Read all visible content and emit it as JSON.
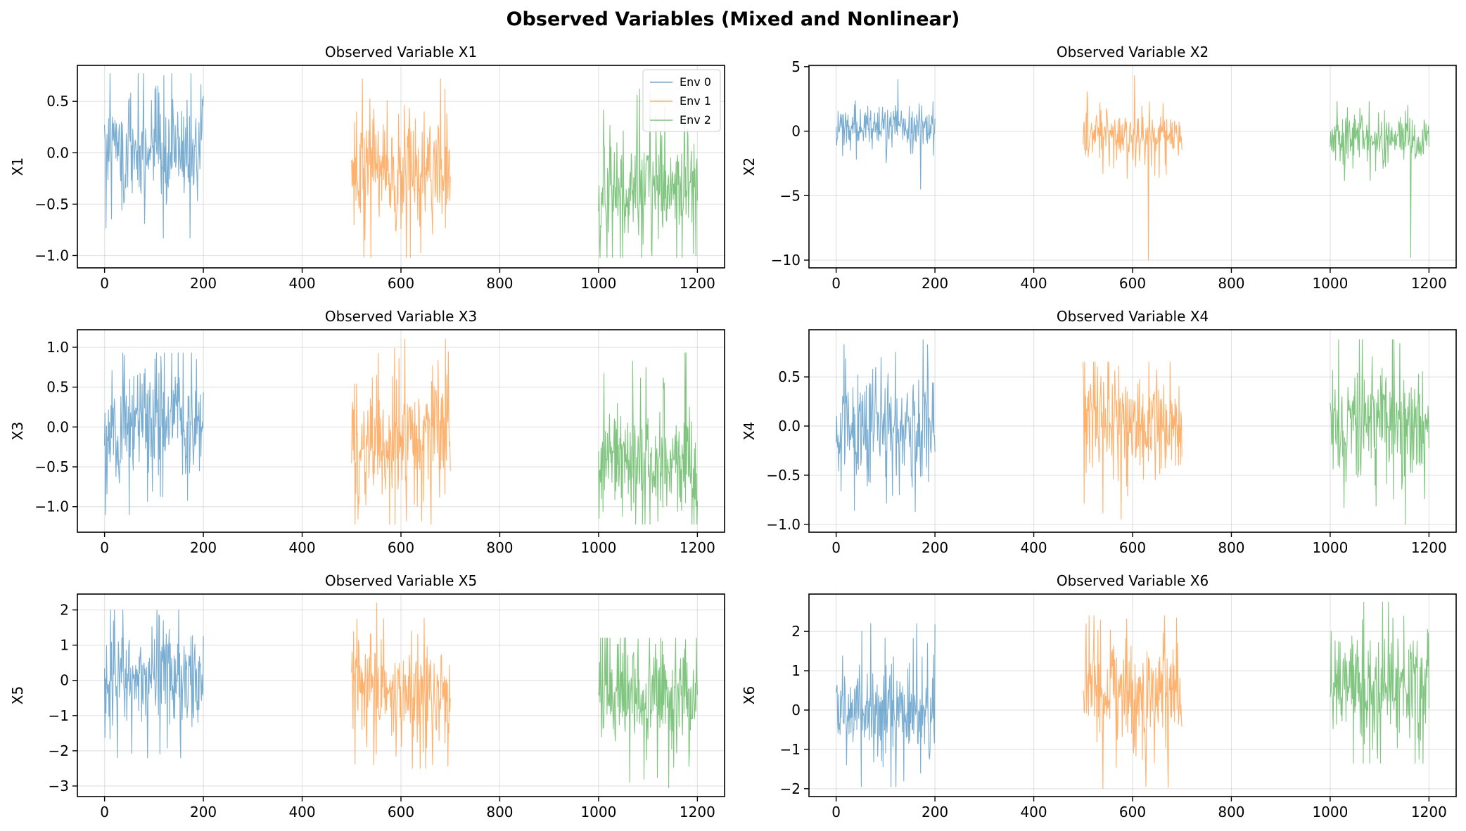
{
  "suptitle": "Observed Variables (Mixed and Nonlinear)",
  "colors": {
    "env0": "#1f77b4",
    "env1": "#ff7f0e",
    "env2": "#2ca02c"
  },
  "chart_data": [
    {
      "type": "line",
      "title": "Observed Variable X1",
      "ylabel": "X1",
      "xlim": [
        -55,
        1255
      ],
      "ylim": [
        -1.12,
        0.85
      ],
      "xticks": [
        0,
        200,
        400,
        600,
        800,
        1000,
        1200
      ],
      "yticks": [
        -1.0,
        -0.5,
        0.0,
        0.5
      ],
      "ytick_labels": [
        "−1.0",
        "−0.5",
        "0.0",
        "0.5"
      ],
      "grid": true,
      "legend": {
        "position": "top-right",
        "entries": [
          "Env 0",
          "Env 1",
          "Env 2"
        ]
      },
      "series": [
        {
          "name": "Env 0",
          "x_range": [
            0,
            200
          ],
          "mean": 0.0,
          "spread": 0.28,
          "min": -0.83,
          "max": 0.77
        },
        {
          "name": "Env 1",
          "x_range": [
            500,
            700
          ],
          "mean": -0.15,
          "spread": 0.3,
          "min": -1.02,
          "max": 0.72
        },
        {
          "name": "Env 2",
          "x_range": [
            1000,
            1200
          ],
          "mean": -0.35,
          "spread": 0.3,
          "min": -1.02,
          "max": 0.62
        }
      ]
    },
    {
      "type": "line",
      "title": "Observed Variable X2",
      "ylabel": "X2",
      "xlim": [
        -55,
        1255
      ],
      "ylim": [
        -10.6,
        5.1
      ],
      "xticks": [
        0,
        200,
        400,
        600,
        800,
        1000,
        1200
      ],
      "yticks": [
        -10,
        -5,
        0,
        5
      ],
      "ytick_labels": [
        "−10",
        "−5",
        "0",
        "5"
      ],
      "grid": true,
      "legend": null,
      "series": [
        {
          "name": "Env 0",
          "x_range": [
            0,
            200
          ],
          "mean": 0.2,
          "spread": 0.8,
          "min": -4.5,
          "max": 4.0
        },
        {
          "name": "Env 1",
          "x_range": [
            500,
            700
          ],
          "mean": -0.3,
          "spread": 1.0,
          "min": -10.0,
          "max": 4.3
        },
        {
          "name": "Env 2",
          "x_range": [
            1000,
            1200
          ],
          "mean": -0.5,
          "spread": 1.0,
          "min": -9.8,
          "max": 2.3
        }
      ]
    },
    {
      "type": "line",
      "title": "Observed Variable X3",
      "ylabel": "X3",
      "xlim": [
        -55,
        1255
      ],
      "ylim": [
        -1.32,
        1.22
      ],
      "xticks": [
        0,
        200,
        400,
        600,
        800,
        1000,
        1200
      ],
      "yticks": [
        -1.0,
        -0.5,
        0.0,
        0.5,
        1.0
      ],
      "ytick_labels": [
        "−1.0",
        "−0.5",
        "0.0",
        "0.5",
        "1.0"
      ],
      "grid": true,
      "legend": null,
      "series": [
        {
          "name": "Env 0",
          "x_range": [
            0,
            200
          ],
          "mean": 0.05,
          "spread": 0.38,
          "min": -1.1,
          "max": 0.93
        },
        {
          "name": "Env 1",
          "x_range": [
            500,
            700
          ],
          "mean": -0.2,
          "spread": 0.4,
          "min": -1.22,
          "max": 1.1
        },
        {
          "name": "Env 2",
          "x_range": [
            1000,
            1200
          ],
          "mean": -0.4,
          "spread": 0.4,
          "min": -1.22,
          "max": 0.93
        }
      ]
    },
    {
      "type": "line",
      "title": "Observed Variable X4",
      "ylabel": "X4",
      "xlim": [
        -55,
        1255
      ],
      "ylim": [
        -1.08,
        0.98
      ],
      "xticks": [
        0,
        200,
        400,
        600,
        800,
        1000,
        1200
      ],
      "yticks": [
        -1.0,
        -0.5,
        0.0,
        0.5
      ],
      "ytick_labels": [
        "−1.0",
        "−0.5",
        "0.0",
        "0.5"
      ],
      "grid": true,
      "legend": null,
      "series": [
        {
          "name": "Env 0",
          "x_range": [
            0,
            200
          ],
          "mean": 0.0,
          "spread": 0.3,
          "min": -0.87,
          "max": 0.88
        },
        {
          "name": "Env 1",
          "x_range": [
            500,
            700
          ],
          "mean": 0.0,
          "spread": 0.3,
          "min": -0.95,
          "max": 0.65
        },
        {
          "name": "Env 2",
          "x_range": [
            1000,
            1200
          ],
          "mean": 0.0,
          "spread": 0.32,
          "min": -1.0,
          "max": 0.88
        }
      ]
    },
    {
      "type": "line",
      "title": "Observed Variable X5",
      "ylabel": "X5",
      "xlim": [
        -55,
        1255
      ],
      "ylim": [
        -3.3,
        2.45
      ],
      "xticks": [
        0,
        200,
        400,
        600,
        800,
        1000,
        1200
      ],
      "yticks": [
        -3,
        -2,
        -1,
        0,
        1,
        2
      ],
      "ytick_labels": [
        "−3",
        "−2",
        "−1",
        "0",
        "1",
        "2"
      ],
      "grid": true,
      "legend": null,
      "series": [
        {
          "name": "Env 0",
          "x_range": [
            0,
            200
          ],
          "mean": 0.1,
          "spread": 0.75,
          "min": -2.2,
          "max": 2.0
        },
        {
          "name": "Env 1",
          "x_range": [
            500,
            700
          ],
          "mean": -0.3,
          "spread": 0.75,
          "min": -2.5,
          "max": 2.2
        },
        {
          "name": "Env 2",
          "x_range": [
            1000,
            1200
          ],
          "mean": -0.5,
          "spread": 0.75,
          "min": -3.05,
          "max": 1.2
        }
      ]
    },
    {
      "type": "line",
      "title": "Observed Variable X6",
      "ylabel": "X6",
      "xlim": [
        -55,
        1255
      ],
      "ylim": [
        -2.2,
        2.95
      ],
      "xticks": [
        0,
        200,
        400,
        600,
        800,
        1000,
        1200
      ],
      "yticks": [
        -2,
        -1,
        0,
        1,
        2
      ],
      "ytick_labels": [
        "−2",
        "−1",
        "0",
        "1",
        "2"
      ],
      "grid": true,
      "legend": null,
      "series": [
        {
          "name": "Env 0",
          "x_range": [
            0,
            200
          ],
          "mean": 0.0,
          "spread": 0.7,
          "min": -1.95,
          "max": 2.2
        },
        {
          "name": "Env 1",
          "x_range": [
            500,
            700
          ],
          "mean": 0.4,
          "spread": 0.7,
          "min": -2.0,
          "max": 2.4
        },
        {
          "name": "Env 2",
          "x_range": [
            1000,
            1200
          ],
          "mean": 0.7,
          "spread": 0.75,
          "min": -1.35,
          "max": 2.75
        }
      ]
    }
  ]
}
